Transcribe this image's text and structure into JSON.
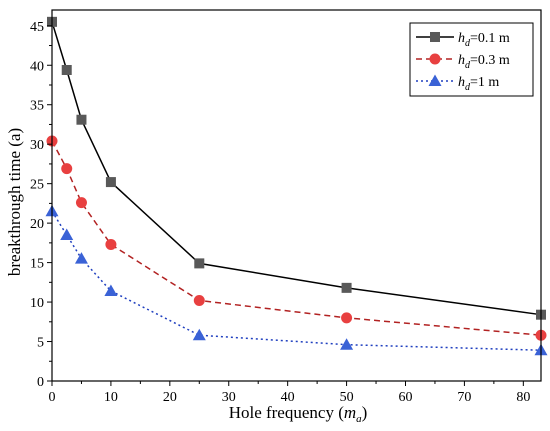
{
  "chart_data": {
    "type": "line",
    "xlabel_main": "Hole frequency (",
    "xlabel_var": "m",
    "xlabel_sub": "a",
    "xlabel_end": ")",
    "ylabel": "breakthrough time (a)",
    "xlim": [
      0,
      83
    ],
    "ylim": [
      0,
      47
    ],
    "x_ticks": [
      0,
      10,
      20,
      30,
      40,
      50,
      60,
      70,
      80
    ],
    "y_ticks": [
      0,
      5,
      10,
      15,
      20,
      25,
      30,
      35,
      40,
      45
    ],
    "grid": false,
    "legend_position": "top-right",
    "x": [
      0,
      2.5,
      5,
      10,
      25,
      50,
      83
    ],
    "series": [
      {
        "legend_var": "h",
        "legend_sub": "d",
        "legend_rest": "=0.1 m",
        "color": "#000000",
        "marker_color": "#595959",
        "marker": "square",
        "dash": "none",
        "values": [
          45.5,
          39.4,
          33.1,
          25.2,
          14.9,
          11.8,
          8.4
        ]
      },
      {
        "legend_var": "h",
        "legend_sub": "d",
        "legend_rest": "=0.3 m",
        "color": "#b22222",
        "marker_color": "#e84040",
        "marker": "circle",
        "dash": "6,4",
        "values": [
          30.4,
          26.9,
          22.6,
          17.3,
          10.2,
          8.0,
          5.8
        ]
      },
      {
        "legend_var": "h",
        "legend_sub": "d",
        "legend_rest": "=1 m",
        "color": "#1f3fbf",
        "marker_color": "#3a62d6",
        "marker": "triangle",
        "dash": "2,3",
        "values": [
          21.5,
          18.5,
          15.5,
          11.4,
          5.8,
          4.6,
          3.9
        ]
      }
    ]
  }
}
